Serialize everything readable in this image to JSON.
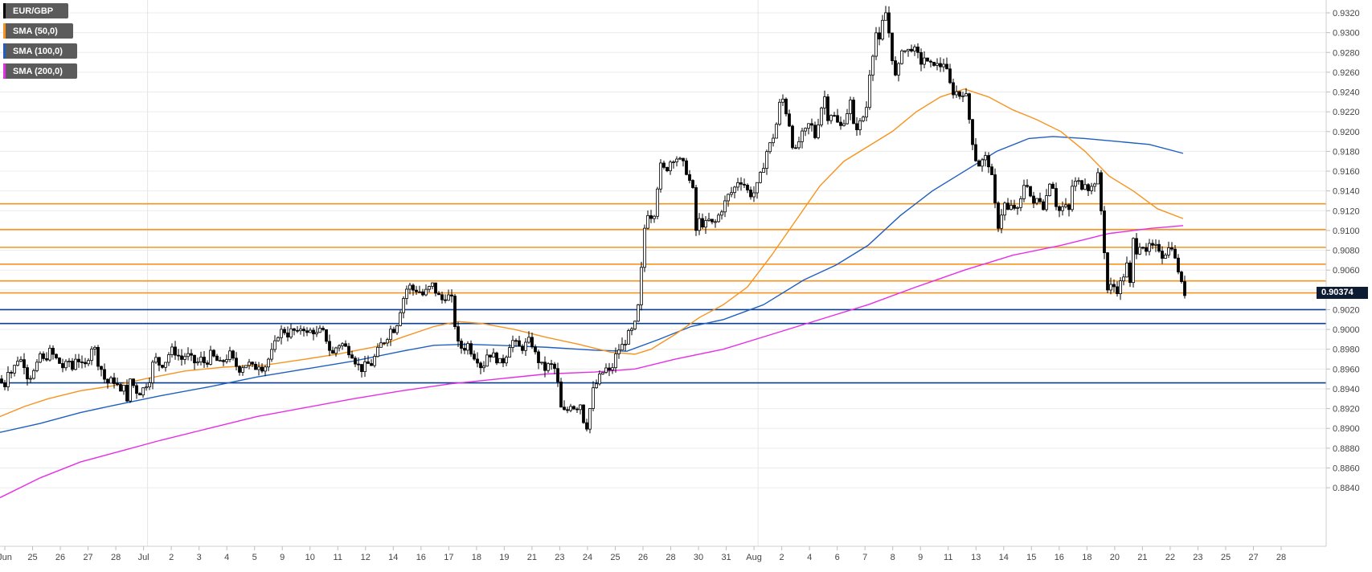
{
  "legend": [
    {
      "label": "EUR/GBP",
      "color": "#000000"
    },
    {
      "label": "SMA (50,0)",
      "color": "#f7931e"
    },
    {
      "label": "SMA (100,0)",
      "color": "#1f5fbf"
    },
    {
      "label": "SMA (200,0)",
      "color": "#e62ee6"
    }
  ],
  "current_price": {
    "label": "0.90374",
    "value": 0.90374
  },
  "chart_data": {
    "type": "candlestick",
    "symbol": "EUR/GBP",
    "ylim": [
      0.883,
      0.933
    ],
    "y_ticks": [
      "0.9320",
      "0.9300",
      "0.9280",
      "0.9260",
      "0.9240",
      "0.9220",
      "0.9200",
      "0.9180",
      "0.9160",
      "0.9140",
      "0.9120",
      "0.9100",
      "0.9080",
      "0.9060",
      "0.9040",
      "0.9020",
      "0.9000",
      "0.8980",
      "0.8960",
      "0.8940",
      "0.8920",
      "0.8900",
      "0.8880",
      "0.8860",
      "0.8840"
    ],
    "x_labels": [
      "Jun",
      "25",
      "26",
      "27",
      "28",
      "Jul",
      "2",
      "3",
      "4",
      "5",
      "9",
      "10",
      "11",
      "12",
      "14",
      "16",
      "17",
      "18",
      "19",
      "21",
      "23",
      "24",
      "25",
      "26",
      "28",
      "30",
      "31",
      "Aug",
      "2",
      "4",
      "6",
      "7",
      "8",
      "9",
      "11",
      "13",
      "14",
      "15",
      "16",
      "18",
      "20",
      "21",
      "22",
      "23",
      "25",
      "27",
      "28"
    ],
    "vertical_grid_after": [
      "Jul",
      "Aug"
    ],
    "grid": true,
    "horizontal_levels": [
      {
        "value": 0.9127,
        "color": "#f7931e"
      },
      {
        "value": 0.9101,
        "color": "#f7931e"
      },
      {
        "value": 0.9083,
        "color": "#f7931e"
      },
      {
        "value": 0.9066,
        "color": "#f7931e"
      },
      {
        "value": 0.9049,
        "color": "#f7931e"
      },
      {
        "value": 0.9037,
        "color": "#f7931e"
      },
      {
        "value": 0.902,
        "color": "#0d3f8f"
      },
      {
        "value": 0.9006,
        "color": "#0d3f8f"
      },
      {
        "value": 0.8946,
        "color": "#0d3f8f"
      }
    ],
    "close_path": [
      [
        0,
        0.895
      ],
      [
        5,
        0.894
      ],
      [
        10,
        0.896
      ],
      [
        16,
        0.8955
      ],
      [
        20,
        0.897
      ],
      [
        25,
        0.897
      ],
      [
        30,
        0.8965
      ],
      [
        35,
        0.895
      ],
      [
        40,
        0.8955
      ],
      [
        45,
        0.896
      ],
      [
        50,
        0.8975
      ],
      [
        56,
        0.8965
      ],
      [
        60,
        0.898
      ],
      [
        65,
        0.8975
      ],
      [
        70,
        0.897
      ],
      [
        75,
        0.8965
      ],
      [
        80,
        0.896
      ],
      [
        85,
        0.897
      ],
      [
        90,
        0.896
      ],
      [
        95,
        0.8975
      ],
      [
        100,
        0.8965
      ],
      [
        105,
        0.896
      ],
      [
        108,
        0.897
      ],
      [
        112,
        0.8975
      ],
      [
        116,
        0.899
      ],
      [
        120,
        0.897
      ],
      [
        126,
        0.896
      ],
      [
        130,
        0.895
      ],
      [
        135,
        0.8945
      ],
      [
        140,
        0.895
      ],
      [
        145,
        0.8945
      ],
      [
        150,
        0.8935
      ],
      [
        155,
        0.895
      ],
      [
        158,
        0.8925
      ],
      [
        162,
        0.895
      ],
      [
        168,
        0.894
      ],
      [
        172,
        0.8935
      ],
      [
        178,
        0.894
      ],
      [
        182,
        0.8945
      ],
      [
        186,
        0.895
      ],
      [
        190,
        0.8965
      ],
      [
        194,
        0.897
      ],
      [
        198,
        0.8965
      ],
      [
        204,
        0.8965
      ],
      [
        210,
        0.8975
      ],
      [
        215,
        0.898
      ],
      [
        220,
        0.8975
      ],
      [
        226,
        0.897
      ],
      [
        232,
        0.8975
      ],
      [
        238,
        0.897
      ],
      [
        244,
        0.8965
      ],
      [
        250,
        0.897
      ],
      [
        256,
        0.8965
      ],
      [
        262,
        0.8975
      ],
      [
        268,
        0.897
      ],
      [
        274,
        0.8965
      ],
      [
        280,
        0.897
      ],
      [
        286,
        0.8975
      ],
      [
        292,
        0.8965
      ],
      [
        298,
        0.896
      ],
      [
        304,
        0.8965
      ],
      [
        310,
        0.8965
      ],
      [
        316,
        0.896
      ],
      [
        322,
        0.8965
      ],
      [
        328,
        0.896
      ],
      [
        334,
        0.897
      ],
      [
        340,
        0.898
      ],
      [
        346,
        0.8995
      ],
      [
        352,
        0.9
      ],
      [
        358,
        0.8995
      ],
      [
        364,
        0.9
      ],
      [
        370,
        0.8995
      ],
      [
        376,
        0.9005
      ],
      [
        382,
        0.8995
      ],
      [
        388,
        0.9
      ],
      [
        394,
        0.8995
      ],
      [
        400,
        0.9
      ],
      [
        406,
        0.899
      ],
      [
        410,
        0.898
      ],
      [
        414,
        0.8975
      ],
      [
        420,
        0.8985
      ],
      [
        426,
        0.8985
      ],
      [
        432,
        0.898
      ],
      [
        438,
        0.8975
      ],
      [
        444,
        0.8965
      ],
      [
        450,
        0.896
      ],
      [
        456,
        0.8965
      ],
      [
        462,
        0.8965
      ],
      [
        468,
        0.8975
      ],
      [
        474,
        0.8985
      ],
      [
        480,
        0.899
      ],
      [
        486,
        0.9
      ],
      [
        492,
        0.9
      ],
      [
        498,
        0.902
      ],
      [
        503,
        0.9035
      ],
      [
        508,
        0.9045
      ],
      [
        514,
        0.904
      ],
      [
        520,
        0.904
      ],
      [
        526,
        0.9035
      ],
      [
        532,
        0.904
      ],
      [
        538,
        0.9045
      ],
      [
        544,
        0.9035
      ],
      [
        550,
        0.903
      ],
      [
        556,
        0.9035
      ],
      [
        562,
        0.903
      ],
      [
        566,
        0.9005
      ],
      [
        570,
        0.8985
      ],
      [
        576,
        0.898
      ],
      [
        582,
        0.8985
      ],
      [
        588,
        0.8975
      ],
      [
        594,
        0.897
      ],
      [
        600,
        0.896
      ],
      [
        606,
        0.8975
      ],
      [
        612,
        0.8975
      ],
      [
        618,
        0.897
      ],
      [
        624,
        0.8965
      ],
      [
        630,
        0.8975
      ],
      [
        636,
        0.899
      ],
      [
        642,
        0.8985
      ],
      [
        648,
        0.898
      ],
      [
        654,
        0.8985
      ],
      [
        660,
        0.899
      ],
      [
        666,
        0.8975
      ],
      [
        672,
        0.8965
      ],
      [
        678,
        0.896
      ],
      [
        684,
        0.8965
      ],
      [
        690,
        0.896
      ],
      [
        694,
        0.8945
      ],
      [
        698,
        0.892
      ],
      [
        704,
        0.8915
      ],
      [
        710,
        0.8925
      ],
      [
        716,
        0.892
      ],
      [
        722,
        0.8925
      ],
      [
        728,
        0.89
      ],
      [
        732,
        0.8905
      ],
      [
        736,
        0.8935
      ],
      [
        742,
        0.8945
      ],
      [
        748,
        0.8955
      ],
      [
        754,
        0.896
      ],
      [
        760,
        0.8955
      ],
      [
        764,
        0.897
      ],
      [
        770,
        0.898
      ],
      [
        776,
        0.8985
      ],
      [
        782,
        0.8995
      ],
      [
        788,
        0.9
      ],
      [
        792,
        0.901
      ],
      [
        796,
        0.9035
      ],
      [
        800,
        0.9085
      ],
      [
        804,
        0.912
      ],
      [
        810,
        0.9115
      ],
      [
        816,
        0.912
      ],
      [
        818,
        0.9145
      ],
      [
        822,
        0.9165
      ],
      [
        828,
        0.916
      ],
      [
        834,
        0.917
      ],
      [
        840,
        0.9175
      ],
      [
        846,
        0.917
      ],
      [
        852,
        0.9165
      ],
      [
        858,
        0.915
      ],
      [
        862,
        0.914
      ],
      [
        866,
        0.91
      ],
      [
        870,
        0.911
      ],
      [
        876,
        0.9105
      ],
      [
        882,
        0.911
      ],
      [
        888,
        0.9105
      ],
      [
        894,
        0.9115
      ],
      [
        900,
        0.9125
      ],
      [
        906,
        0.9135
      ],
      [
        912,
        0.914
      ],
      [
        918,
        0.915
      ],
      [
        924,
        0.915
      ],
      [
        930,
        0.914
      ],
      [
        936,
        0.9135
      ],
      [
        942,
        0.9145
      ],
      [
        948,
        0.916
      ],
      [
        954,
        0.918
      ],
      [
        960,
        0.919
      ],
      [
        964,
        0.92
      ],
      [
        968,
        0.9215
      ],
      [
        972,
        0.924
      ],
      [
        976,
        0.9225
      ],
      [
        980,
        0.9215
      ],
      [
        984,
        0.92
      ],
      [
        988,
        0.9175
      ],
      [
        992,
        0.9185
      ],
      [
        996,
        0.9195
      ],
      [
        1002,
        0.92
      ],
      [
        1008,
        0.921
      ],
      [
        1014,
        0.9195
      ],
      [
        1018,
        0.921
      ],
      [
        1022,
        0.9225
      ],
      [
        1026,
        0.9235
      ],
      [
        1030,
        0.9215
      ],
      [
        1036,
        0.922
      ],
      [
        1040,
        0.921
      ],
      [
        1046,
        0.9205
      ],
      [
        1052,
        0.9215
      ],
      [
        1058,
        0.923
      ],
      [
        1062,
        0.9205
      ],
      [
        1068,
        0.9205
      ],
      [
        1074,
        0.9215
      ],
      [
        1078,
        0.9225
      ],
      [
        1082,
        0.926
      ],
      [
        1086,
        0.928
      ],
      [
        1090,
        0.93
      ],
      [
        1094,
        0.929
      ],
      [
        1098,
        0.931
      ],
      [
        1102,
        0.932
      ],
      [
        1106,
        0.93
      ],
      [
        1110,
        0.9275
      ],
      [
        1114,
        0.9255
      ],
      [
        1118,
        0.9265
      ],
      [
        1122,
        0.9285
      ],
      [
        1128,
        0.928
      ],
      [
        1134,
        0.9285
      ],
      [
        1140,
        0.928
      ],
      [
        1146,
        0.927
      ],
      [
        1150,
        0.9275
      ],
      [
        1156,
        0.9265
      ],
      [
        1162,
        0.927
      ],
      [
        1168,
        0.9265
      ],
      [
        1174,
        0.927
      ],
      [
        1180,
        0.9255
      ],
      [
        1184,
        0.924
      ],
      [
        1190,
        0.924
      ],
      [
        1196,
        0.9235
      ],
      [
        1200,
        0.9245
      ],
      [
        1204,
        0.9225
      ],
      [
        1208,
        0.92
      ],
      [
        1212,
        0.918
      ],
      [
        1216,
        0.9165
      ],
      [
        1222,
        0.917
      ],
      [
        1228,
        0.9175
      ],
      [
        1232,
        0.916
      ],
      [
        1236,
        0.9145
      ],
      [
        1240,
        0.9105
      ],
      [
        1244,
        0.9105
      ],
      [
        1248,
        0.913
      ],
      [
        1254,
        0.912
      ],
      [
        1260,
        0.9125
      ],
      [
        1266,
        0.912
      ],
      [
        1270,
        0.913
      ],
      [
        1276,
        0.9155
      ],
      [
        1280,
        0.914
      ],
      [
        1286,
        0.9125
      ],
      [
        1292,
        0.9135
      ],
      [
        1298,
        0.9125
      ],
      [
        1304,
        0.914
      ],
      [
        1308,
        0.916
      ],
      [
        1312,
        0.913
      ],
      [
        1318,
        0.912
      ],
      [
        1324,
        0.9125
      ],
      [
        1330,
        0.912
      ],
      [
        1334,
        0.9145
      ],
      [
        1340,
        0.915
      ],
      [
        1346,
        0.9145
      ],
      [
        1350,
        0.915
      ],
      [
        1356,
        0.914
      ],
      [
        1362,
        0.915
      ],
      [
        1366,
        0.9155
      ],
      [
        1370,
        0.912
      ],
      [
        1374,
        0.908
      ],
      [
        1378,
        0.904
      ],
      [
        1384,
        0.9045
      ],
      [
        1390,
        0.904
      ],
      [
        1396,
        0.905
      ],
      [
        1402,
        0.9065
      ],
      [
        1406,
        0.9045
      ],
      [
        1410,
        0.909
      ],
      [
        1414,
        0.908
      ],
      [
        1420,
        0.909
      ],
      [
        1426,
        0.9075
      ],
      [
        1430,
        0.9085
      ],
      [
        1436,
        0.908
      ],
      [
        1440,
        0.9085
      ],
      [
        1446,
        0.9075
      ],
      [
        1452,
        0.908
      ],
      [
        1458,
        0.9085
      ],
      [
        1462,
        0.907
      ],
      [
        1466,
        0.906
      ],
      [
        1470,
        0.9045
      ],
      [
        1474,
        0.9037
      ]
    ],
    "sma_50": [
      [
        0,
        0.8912
      ],
      [
        30,
        0.8922
      ],
      [
        60,
        0.893
      ],
      [
        100,
        0.8938
      ],
      [
        140,
        0.8943
      ],
      [
        180,
        0.895
      ],
      [
        230,
        0.8958
      ],
      [
        280,
        0.8962
      ],
      [
        330,
        0.8964
      ],
      [
        380,
        0.897
      ],
      [
        420,
        0.8975
      ],
      [
        470,
        0.8983
      ],
      [
        500,
        0.8992
      ],
      [
        540,
        0.9003
      ],
      [
        570,
        0.9008
      ],
      [
        600,
        0.9006
      ],
      [
        640,
        0.9
      ],
      [
        680,
        0.8992
      ],
      [
        720,
        0.8985
      ],
      [
        760,
        0.8977
      ],
      [
        790,
        0.8975
      ],
      [
        810,
        0.898
      ],
      [
        840,
        0.8995
      ],
      [
        870,
        0.9012
      ],
      [
        900,
        0.9025
      ],
      [
        930,
        0.9043
      ],
      [
        960,
        0.9075
      ],
      [
        990,
        0.911
      ],
      [
        1020,
        0.9145
      ],
      [
        1050,
        0.917
      ],
      [
        1080,
        0.9185
      ],
      [
        1110,
        0.92
      ],
      [
        1140,
        0.922
      ],
      [
        1170,
        0.9235
      ],
      [
        1200,
        0.9243
      ],
      [
        1230,
        0.9235
      ],
      [
        1260,
        0.9222
      ],
      [
        1290,
        0.9212
      ],
      [
        1320,
        0.92
      ],
      [
        1350,
        0.918
      ],
      [
        1380,
        0.9155
      ],
      [
        1410,
        0.914
      ],
      [
        1440,
        0.9122
      ],
      [
        1472,
        0.9112
      ]
    ],
    "sma_100": [
      [
        0,
        0.8896
      ],
      [
        50,
        0.8905
      ],
      [
        100,
        0.8916
      ],
      [
        140,
        0.8923
      ],
      [
        200,
        0.8933
      ],
      [
        260,
        0.8942
      ],
      [
        320,
        0.8952
      ],
      [
        380,
        0.896
      ],
      [
        440,
        0.8968
      ],
      [
        500,
        0.8978
      ],
      [
        540,
        0.8984
      ],
      [
        580,
        0.8985
      ],
      [
        620,
        0.8984
      ],
      [
        680,
        0.8982
      ],
      [
        740,
        0.8979
      ],
      [
        780,
        0.8978
      ],
      [
        820,
        0.899
      ],
      [
        860,
        0.9003
      ],
      [
        900,
        0.901
      ],
      [
        950,
        0.9025
      ],
      [
        1000,
        0.905
      ],
      [
        1040,
        0.9065
      ],
      [
        1080,
        0.9085
      ],
      [
        1120,
        0.9115
      ],
      [
        1160,
        0.914
      ],
      [
        1200,
        0.916
      ],
      [
        1240,
        0.918
      ],
      [
        1280,
        0.9193
      ],
      [
        1310,
        0.9195
      ],
      [
        1350,
        0.9193
      ],
      [
        1390,
        0.919
      ],
      [
        1430,
        0.9187
      ],
      [
        1472,
        0.9178
      ]
    ],
    "sma_200": [
      [
        0,
        0.883
      ],
      [
        50,
        0.885
      ],
      [
        100,
        0.8866
      ],
      [
        150,
        0.8877
      ],
      [
        200,
        0.8888
      ],
      [
        260,
        0.89
      ],
      [
        320,
        0.8912
      ],
      [
        380,
        0.8921
      ],
      [
        440,
        0.893
      ],
      [
        500,
        0.8938
      ],
      [
        560,
        0.8945
      ],
      [
        620,
        0.895
      ],
      [
        680,
        0.8955
      ],
      [
        740,
        0.8957
      ],
      [
        790,
        0.896
      ],
      [
        840,
        0.897
      ],
      [
        900,
        0.898
      ],
      [
        960,
        0.8995
      ],
      [
        1020,
        0.901
      ],
      [
        1080,
        0.9025
      ],
      [
        1140,
        0.9043
      ],
      [
        1200,
        0.906
      ],
      [
        1260,
        0.9075
      ],
      [
        1320,
        0.9085
      ],
      [
        1380,
        0.9097
      ],
      [
        1430,
        0.9102
      ],
      [
        1472,
        0.9105
      ]
    ]
  }
}
